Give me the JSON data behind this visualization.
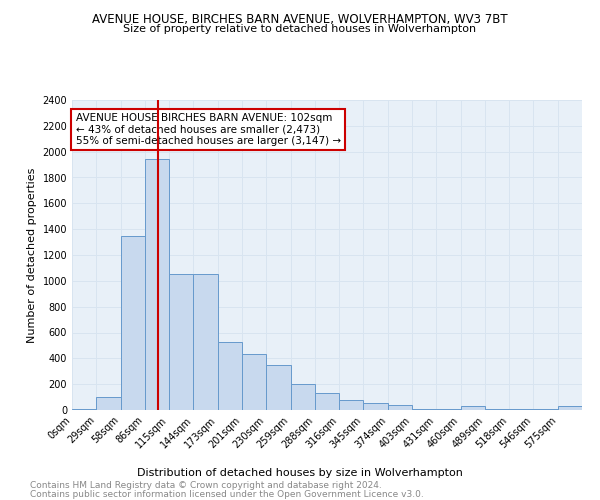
{
  "title": "AVENUE HOUSE, BIRCHES BARN AVENUE, WOLVERHAMPTON, WV3 7BT",
  "subtitle": "Size of property relative to detached houses in Wolverhampton",
  "xlabel": "Distribution of detached houses by size in Wolverhampton",
  "ylabel": "Number of detached properties",
  "footnote1": "Contains HM Land Registry data © Crown copyright and database right 2024.",
  "footnote2": "Contains public sector information licensed under the Open Government Licence v3.0.",
  "bar_labels": [
    "0sqm",
    "29sqm",
    "58sqm",
    "86sqm",
    "115sqm",
    "144sqm",
    "173sqm",
    "201sqm",
    "230sqm",
    "259sqm",
    "288sqm",
    "316sqm",
    "345sqm",
    "374sqm",
    "403sqm",
    "431sqm",
    "460sqm",
    "489sqm",
    "518sqm",
    "546sqm",
    "575sqm"
  ],
  "bar_values": [
    5,
    100,
    1350,
    1940,
    1050,
    1050,
    530,
    430,
    350,
    200,
    130,
    75,
    55,
    40,
    10,
    5,
    30,
    5,
    5,
    5,
    30
  ],
  "bar_color": "#c8d9ee",
  "bar_edge_color": "#6699cc",
  "grid_color": "#d8e4f0",
  "property_line_color": "#cc0000",
  "annotation_text": "AVENUE HOUSE BIRCHES BARN AVENUE: 102sqm\n← 43% of detached houses are smaller (2,473)\n55% of semi-detached houses are larger (3,147) →",
  "annotation_box_color": "#ffffff",
  "annotation_border_color": "#cc0000",
  "ylim": [
    0,
    2400
  ],
  "yticks": [
    0,
    200,
    400,
    600,
    800,
    1000,
    1200,
    1400,
    1600,
    1800,
    2000,
    2200,
    2400
  ],
  "bg_color": "#e8f0f8",
  "fig_bg_color": "#ffffff",
  "title_fontsize": 8.5,
  "subtitle_fontsize": 8.0,
  "ylabel_fontsize": 8.0,
  "xlabel_fontsize": 8.0,
  "tick_fontsize": 7.0,
  "footnote_fontsize": 6.5
}
